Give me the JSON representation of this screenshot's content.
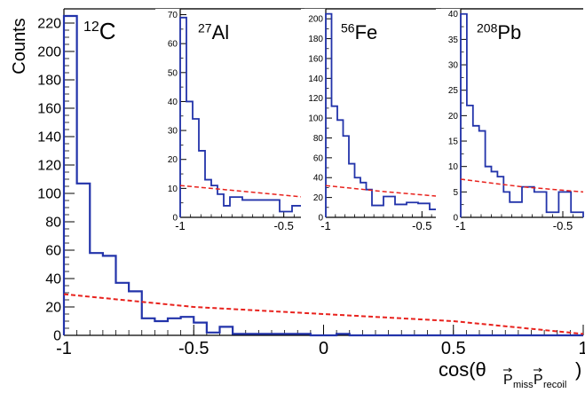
{
  "chart_data": [
    {
      "type": "step",
      "label": "12C",
      "label_mass": "12",
      "label_element": "C",
      "ylabel": "Counts",
      "xlabel_main": "cos(θ",
      "xlabel_sub1": "P",
      "xlabel_sub1_tail": "miss",
      "xlabel_sub2": "P",
      "xlabel_sub2_tail": "recoil",
      "xlabel_close": ")",
      "xlim": [
        -1,
        1
      ],
      "ylim": [
        0,
        230
      ],
      "x_ticks": [
        -1,
        -0.5,
        0,
        0.5,
        1
      ],
      "x_tick_labels": [
        "-1",
        "-0.5",
        "0",
        "0.5",
        "1"
      ],
      "y_ticks": [
        0,
        20,
        40,
        60,
        80,
        100,
        120,
        140,
        160,
        180,
        200,
        220
      ],
      "y_tick_labels": [
        "0",
        "20",
        "40",
        "60",
        "80",
        "100",
        "120",
        "140",
        "160",
        "180",
        "200",
        "220"
      ],
      "bin_edges": [
        -1,
        -0.95,
        -0.9,
        -0.85,
        -0.8,
        -0.75,
        -0.7,
        -0.65,
        -0.6,
        -0.55,
        -0.5,
        -0.45,
        -0.4,
        -0.35,
        -0.3,
        -0.25,
        -0.2,
        -0.15,
        -0.1,
        -0.05,
        0,
        0.05,
        0.1,
        0.15,
        0.2,
        0.25,
        0.3,
        0.35,
        0.4,
        0.45,
        0.5,
        0.55,
        0.6,
        0.65,
        0.7,
        0.75,
        0.8,
        0.85,
        0.9,
        0.95,
        1
      ],
      "counts": [
        225,
        107,
        58,
        56,
        37,
        31,
        12,
        10,
        12,
        13,
        9,
        2,
        6,
        1,
        1,
        1,
        1,
        1,
        1,
        0,
        0,
        1,
        0,
        0,
        0,
        0,
        0,
        0,
        0,
        0,
        0,
        0,
        0,
        0,
        0,
        0,
        0,
        0,
        0,
        0
      ],
      "background": {
        "x": [
          -1,
          -0.5,
          0,
          0.5,
          1
        ],
        "y": [
          29,
          20,
          15,
          10,
          1
        ]
      },
      "colors": {
        "data": "#2233aa",
        "background": "#e8221d"
      }
    },
    {
      "type": "step",
      "label": "27Al",
      "label_mass": "27",
      "label_element": "Al",
      "xlim": [
        -1,
        -0.4
      ],
      "ylim": [
        0,
        72
      ],
      "x_ticks": [
        -1,
        -0.5
      ],
      "x_tick_labels": [
        "-1",
        "-0.5"
      ],
      "y_ticks": [
        0,
        10,
        20,
        30,
        40,
        50,
        60,
        70
      ],
      "y_tick_labels": [
        "0",
        "10",
        "20",
        "30",
        "40",
        "50",
        "60",
        "70"
      ],
      "bin_edges": [
        -1,
        -0.97,
        -0.94,
        -0.91,
        -0.88,
        -0.85,
        -0.82,
        -0.79,
        -0.76,
        -0.7,
        -0.64,
        -0.58,
        -0.52,
        -0.46,
        -0.4
      ],
      "counts": [
        69,
        40,
        34,
        23,
        13,
        11,
        8,
        4,
        7,
        6,
        6,
        6,
        2,
        4
      ],
      "background": {
        "x": [
          -1,
          -0.7,
          -0.4
        ],
        "y": [
          11,
          9,
          7
        ]
      },
      "colors": {
        "data": "#2233aa",
        "background": "#e8221d"
      }
    },
    {
      "type": "step",
      "label": "56Fe",
      "label_mass": "56",
      "label_element": "Fe",
      "xlim": [
        -1,
        -0.4
      ],
      "ylim": [
        0,
        210
      ],
      "x_ticks": [
        -1,
        -0.5
      ],
      "x_tick_labels": [
        "-1",
        "-0.5"
      ],
      "y_ticks": [
        0,
        20,
        40,
        60,
        80,
        100,
        120,
        140,
        160,
        180,
        200
      ],
      "y_tick_labels": [
        "0",
        "20",
        "40",
        "60",
        "80",
        "100",
        "120",
        "140",
        "160",
        "180",
        "200"
      ],
      "bin_edges": [
        -1,
        -0.97,
        -0.94,
        -0.91,
        -0.88,
        -0.85,
        -0.82,
        -0.79,
        -0.76,
        -0.7,
        -0.64,
        -0.58,
        -0.52,
        -0.46,
        -0.4
      ],
      "counts": [
        205,
        112,
        98,
        82,
        54,
        40,
        35,
        28,
        12,
        21,
        13,
        15,
        14,
        8
      ],
      "background": {
        "x": [
          -1,
          -0.7,
          -0.4
        ],
        "y": [
          32,
          26,
          21
        ]
      },
      "colors": {
        "data": "#2233aa",
        "background": "#e8221d"
      }
    },
    {
      "type": "step",
      "label": "208Pb",
      "label_mass": "208",
      "label_element": "Pb",
      "xlim": [
        -1,
        -0.4
      ],
      "ylim": [
        0,
        41
      ],
      "x_ticks": [
        -1,
        -0.5
      ],
      "x_tick_labels": [
        "-1",
        "-0.5"
      ],
      "y_ticks": [
        0,
        5,
        10,
        15,
        20,
        25,
        30,
        35,
        40
      ],
      "y_tick_labels": [
        "0",
        "5",
        "10",
        "15",
        "20",
        "25",
        "30",
        "35",
        "40"
      ],
      "bin_edges": [
        -1,
        -0.97,
        -0.94,
        -0.91,
        -0.88,
        -0.85,
        -0.82,
        -0.79,
        -0.76,
        -0.7,
        -0.64,
        -0.58,
        -0.52,
        -0.46,
        -0.4
      ],
      "counts": [
        40,
        22,
        18,
        17,
        10,
        9,
        8,
        5,
        3,
        6,
        5,
        1,
        5,
        1
      ],
      "background": {
        "x": [
          -1,
          -0.7,
          -0.4
        ],
        "y": [
          7.5,
          6,
          5
        ]
      },
      "colors": {
        "data": "#2233aa",
        "background": "#e8221d"
      }
    }
  ]
}
